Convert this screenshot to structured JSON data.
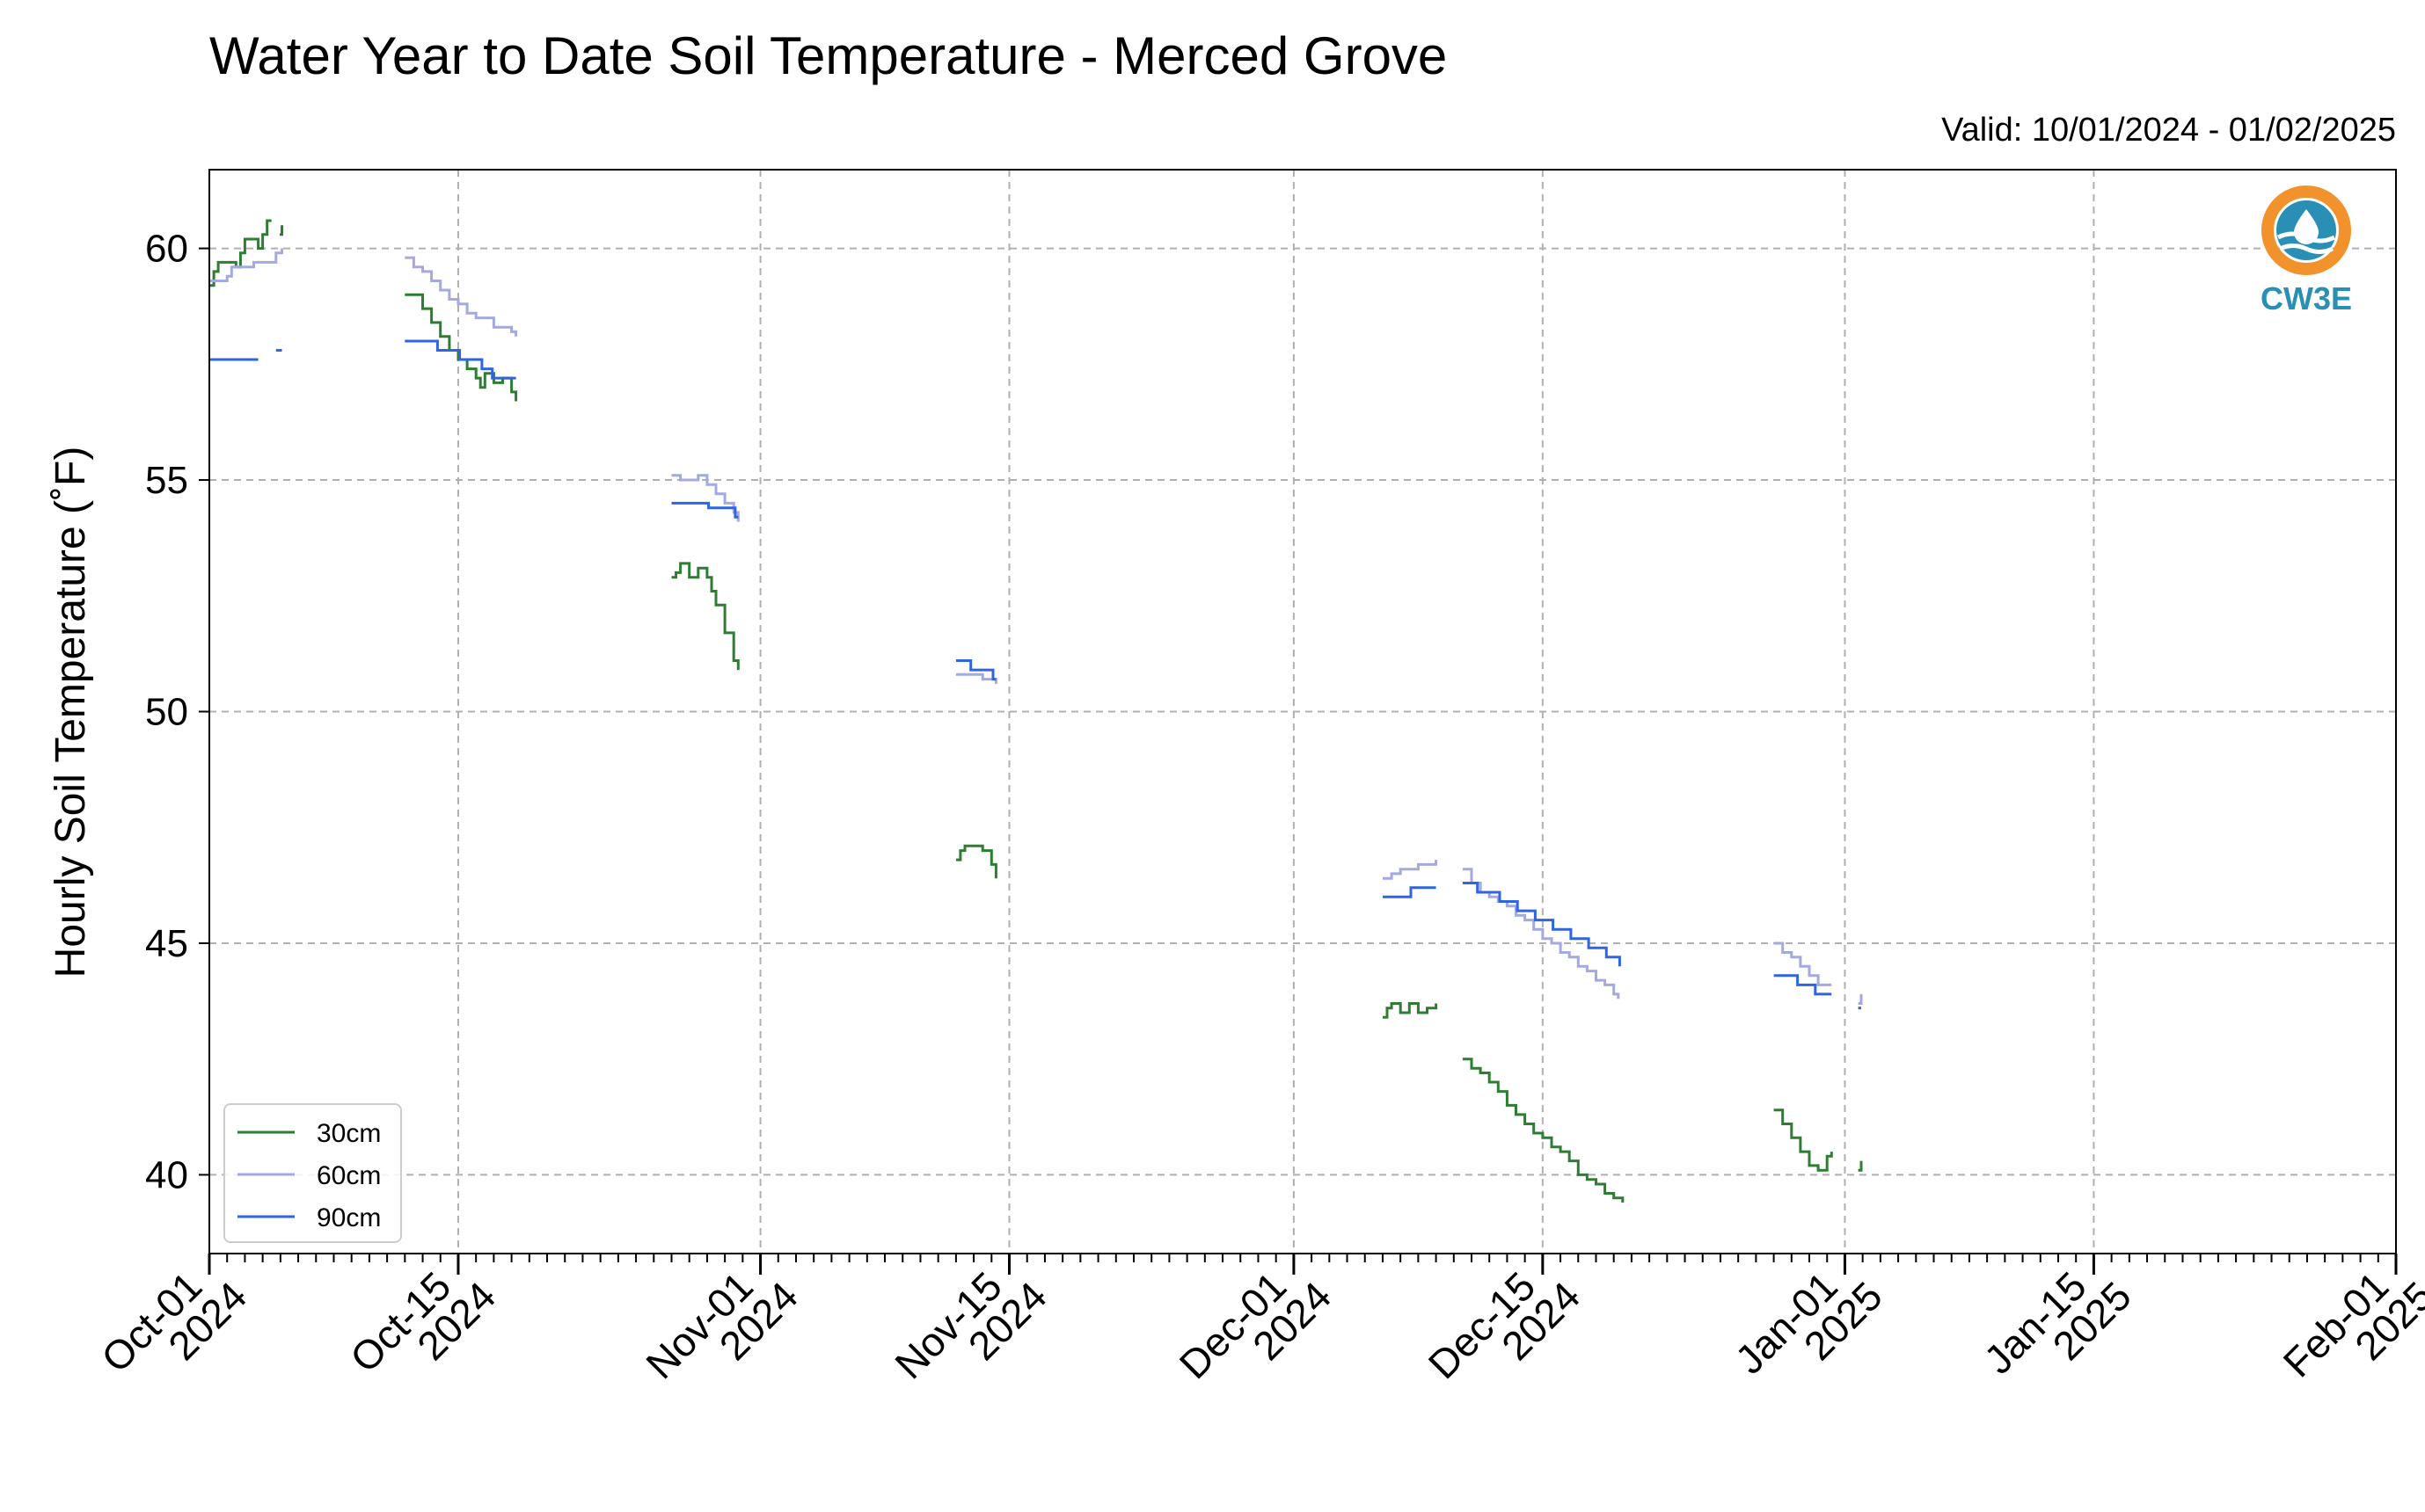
{
  "chart_data": {
    "type": "line",
    "title": "Water Year to Date Soil Temperature - Merced Grove",
    "subtitle": "Valid: 10/01/2024 - 01/02/2025",
    "xlabel": "",
    "ylabel": "Hourly Soil Temperature ($^\\circ$F)",
    "ylabel_display": "Hourly Soil Temperature (˚F)",
    "xlim": [
      "2024-10-01",
      "2025-02-01"
    ],
    "ylim": [
      38.3,
      61.7
    ],
    "grid": true,
    "legend_position": "lower-left",
    "x_ticks": [
      {
        "date": "2024-10-01",
        "line1": "Oct-01",
        "line2": "2024"
      },
      {
        "date": "2024-10-15",
        "line1": "Oct-15",
        "line2": "2024"
      },
      {
        "date": "2024-11-01",
        "line1": "Nov-01",
        "line2": "2024"
      },
      {
        "date": "2024-11-15",
        "line1": "Nov-15",
        "line2": "2024"
      },
      {
        "date": "2024-12-01",
        "line1": "Dec-01",
        "line2": "2024"
      },
      {
        "date": "2024-12-15",
        "line1": "Dec-15",
        "line2": "2024"
      },
      {
        "date": "2025-01-01",
        "line1": "Jan-01",
        "line2": "2025"
      },
      {
        "date": "2025-01-15",
        "line1": "Jan-15",
        "line2": "2025"
      },
      {
        "date": "2025-02-01",
        "line1": "Feb-01",
        "line2": "2025"
      }
    ],
    "y_ticks": [
      40,
      45,
      50,
      55,
      60
    ],
    "series": [
      {
        "name": "30cm",
        "color": "#2e7d32",
        "segments": [
          [
            [
              "2024-10-01 00:00",
              59.2
            ],
            [
              "2024-10-01 06:00",
              59.5
            ],
            [
              "2024-10-01 12:00",
              59.7
            ],
            [
              "2024-10-02 00:00",
              59.7
            ],
            [
              "2024-10-02 12:00",
              59.6
            ],
            [
              "2024-10-02 18:00",
              59.9
            ],
            [
              "2024-10-03 00:00",
              60.2
            ],
            [
              "2024-10-03 12:00",
              60.2
            ],
            [
              "2024-10-03 18:00",
              60.0
            ],
            [
              "2024-10-04 00:00",
              60.3
            ],
            [
              "2024-10-04 06:00",
              60.6
            ],
            [
              "2024-10-04 12:00",
              60.6
            ]
          ],
          [
            [
              "2024-10-04 23:00",
              60.3
            ],
            [
              "2024-10-05 02:00",
              60.5
            ]
          ],
          [
            [
              "2024-10-12 00:00",
              59.0
            ],
            [
              "2024-10-12 12:00",
              59.0
            ],
            [
              "2024-10-13 00:00",
              58.7
            ],
            [
              "2024-10-13 12:00",
              58.4
            ],
            [
              "2024-10-14 00:00",
              58.1
            ],
            [
              "2024-10-14 12:00",
              57.8
            ],
            [
              "2024-10-15 00:00",
              57.6
            ],
            [
              "2024-10-15 12:00",
              57.4
            ],
            [
              "2024-10-16 00:00",
              57.2
            ],
            [
              "2024-10-16 06:00",
              57.0
            ],
            [
              "2024-10-16 12:00",
              57.3
            ],
            [
              "2024-10-17 00:00",
              57.1
            ],
            [
              "2024-10-17 12:00",
              57.2
            ],
            [
              "2024-10-18 00:00",
              56.9
            ],
            [
              "2024-10-18 06:00",
              56.7
            ]
          ],
          [
            [
              "2024-10-27 00:00",
              52.9
            ],
            [
              "2024-10-27 06:00",
              53.0
            ],
            [
              "2024-10-27 12:00",
              53.2
            ],
            [
              "2024-10-28 00:00",
              52.9
            ],
            [
              "2024-10-28 12:00",
              53.1
            ],
            [
              "2024-10-29 00:00",
              52.9
            ],
            [
              "2024-10-29 06:00",
              52.6
            ],
            [
              "2024-10-29 12:00",
              52.3
            ],
            [
              "2024-10-30 00:00",
              51.7
            ],
            [
              "2024-10-30 12:00",
              51.1
            ],
            [
              "2024-10-30 18:00",
              50.9
            ]
          ],
          [
            [
              "2024-11-12 00:00",
              46.8
            ],
            [
              "2024-11-12 06:00",
              47.0
            ],
            [
              "2024-11-12 12:00",
              47.1
            ],
            [
              "2024-11-13 00:00",
              47.1
            ],
            [
              "2024-11-13 12:00",
              47.0
            ],
            [
              "2024-11-14 00:00",
              46.7
            ],
            [
              "2024-11-14 06:00",
              46.4
            ]
          ],
          [
            [
              "2024-12-06 00:00",
              43.4
            ],
            [
              "2024-12-06 06:00",
              43.6
            ],
            [
              "2024-12-06 12:00",
              43.7
            ],
            [
              "2024-12-07 00:00",
              43.5
            ],
            [
              "2024-12-07 12:00",
              43.7
            ],
            [
              "2024-12-08 00:00",
              43.5
            ],
            [
              "2024-12-08 12:00",
              43.6
            ],
            [
              "2024-12-09 00:00",
              43.7
            ]
          ],
          [
            [
              "2024-12-10 12:00",
              42.5
            ],
            [
              "2024-12-11 00:00",
              42.3
            ],
            [
              "2024-12-11 12:00",
              42.2
            ],
            [
              "2024-12-12 00:00",
              42.0
            ],
            [
              "2024-12-12 12:00",
              41.8
            ],
            [
              "2024-12-13 00:00",
              41.5
            ],
            [
              "2024-12-13 12:00",
              41.3
            ],
            [
              "2024-12-14 00:00",
              41.1
            ],
            [
              "2024-12-14 12:00",
              40.9
            ],
            [
              "2024-12-15 00:00",
              40.8
            ],
            [
              "2024-12-15 12:00",
              40.6
            ],
            [
              "2024-12-16 00:00",
              40.5
            ],
            [
              "2024-12-16 12:00",
              40.3
            ],
            [
              "2024-12-17 00:00",
              40.0
            ],
            [
              "2024-12-17 12:00",
              39.9
            ],
            [
              "2024-12-18 00:00",
              39.8
            ],
            [
              "2024-12-18 12:00",
              39.6
            ],
            [
              "2024-12-19 00:00",
              39.5
            ],
            [
              "2024-12-19 12:00",
              39.4
            ]
          ],
          [
            [
              "2024-12-28 00:00",
              41.4
            ],
            [
              "2024-12-28 12:00",
              41.1
            ],
            [
              "2024-12-29 00:00",
              40.8
            ],
            [
              "2024-12-29 12:00",
              40.5
            ],
            [
              "2024-12-30 00:00",
              40.2
            ],
            [
              "2024-12-30 12:00",
              40.1
            ],
            [
              "2024-12-31 00:00",
              40.4
            ],
            [
              "2024-12-31 06:00",
              40.5
            ]
          ],
          [
            [
              "2025-01-01 18:00",
              40.1
            ],
            [
              "2025-01-01 22:00",
              40.3
            ]
          ]
        ]
      },
      {
        "name": "60cm",
        "color": "#a4a9df",
        "segments": [
          [
            [
              "2024-10-01 00:00",
              59.3
            ],
            [
              "2024-10-02 00:00",
              59.4
            ],
            [
              "2024-10-02 06:00",
              59.6
            ],
            [
              "2024-10-03 00:00",
              59.6
            ],
            [
              "2024-10-03 12:00",
              59.7
            ],
            [
              "2024-10-04 12:00",
              59.7
            ],
            [
              "2024-10-04 18:00",
              59.9
            ],
            [
              "2024-10-05 02:00",
              60.0
            ]
          ],
          [
            [
              "2024-10-12 00:00",
              59.8
            ],
            [
              "2024-10-12 12:00",
              59.6
            ],
            [
              "2024-10-13 00:00",
              59.5
            ],
            [
              "2024-10-13 12:00",
              59.3
            ],
            [
              "2024-10-14 00:00",
              59.1
            ],
            [
              "2024-10-14 12:00",
              58.9
            ],
            [
              "2024-10-15 00:00",
              58.8
            ],
            [
              "2024-10-15 12:00",
              58.6
            ],
            [
              "2024-10-16 00:00",
              58.5
            ],
            [
              "2024-10-17 00:00",
              58.3
            ],
            [
              "2024-10-17 12:00",
              58.3
            ],
            [
              "2024-10-18 00:00",
              58.2
            ],
            [
              "2024-10-18 06:00",
              58.1
            ]
          ],
          [
            [
              "2024-10-27 00:00",
              55.1
            ],
            [
              "2024-10-27 12:00",
              55.0
            ],
            [
              "2024-10-28 00:00",
              55.0
            ],
            [
              "2024-10-28 12:00",
              55.1
            ],
            [
              "2024-10-29 00:00",
              54.9
            ],
            [
              "2024-10-29 12:00",
              54.7
            ],
            [
              "2024-10-30 00:00",
              54.5
            ],
            [
              "2024-10-30 12:00",
              54.3
            ],
            [
              "2024-10-30 18:00",
              54.1
            ]
          ],
          [
            [
              "2024-11-12 00:00",
              50.8
            ],
            [
              "2024-11-13 00:00",
              50.8
            ],
            [
              "2024-11-13 12:00",
              50.7
            ],
            [
              "2024-11-14 06:00",
              50.6
            ]
          ],
          [
            [
              "2024-12-06 00:00",
              46.4
            ],
            [
              "2024-12-06 12:00",
              46.5
            ],
            [
              "2024-12-07 00:00",
              46.6
            ],
            [
              "2024-12-07 12:00",
              46.6
            ],
            [
              "2024-12-08 00:00",
              46.7
            ],
            [
              "2024-12-09 00:00",
              46.8
            ]
          ],
          [
            [
              "2024-12-10 12:00",
              46.6
            ],
            [
              "2024-12-11 00:00",
              46.3
            ],
            [
              "2024-12-11 12:00",
              46.1
            ],
            [
              "2024-12-12 00:00",
              46.0
            ],
            [
              "2024-12-12 12:00",
              45.9
            ],
            [
              "2024-12-13 00:00",
              45.8
            ],
            [
              "2024-12-13 12:00",
              45.6
            ],
            [
              "2024-12-14 00:00",
              45.5
            ],
            [
              "2024-12-14 12:00",
              45.3
            ],
            [
              "2024-12-15 00:00",
              45.1
            ],
            [
              "2024-12-15 12:00",
              45.0
            ],
            [
              "2024-12-16 00:00",
              44.8
            ],
            [
              "2024-12-16 12:00",
              44.7
            ],
            [
              "2024-12-17 00:00",
              44.5
            ],
            [
              "2024-12-17 12:00",
              44.4
            ],
            [
              "2024-12-18 00:00",
              44.2
            ],
            [
              "2024-12-18 12:00",
              44.1
            ],
            [
              "2024-12-19 00:00",
              43.9
            ],
            [
              "2024-12-19 06:00",
              43.8
            ]
          ],
          [
            [
              "2024-12-28 00:00",
              45.0
            ],
            [
              "2024-12-28 12:00",
              44.8
            ],
            [
              "2024-12-29 00:00",
              44.7
            ],
            [
              "2024-12-29 12:00",
              44.5
            ],
            [
              "2024-12-30 00:00",
              44.3
            ],
            [
              "2024-12-30 12:00",
              44.1
            ],
            [
              "2024-12-31 06:00",
              44.1
            ]
          ],
          [
            [
              "2025-01-01 18:00",
              43.7
            ],
            [
              "2025-01-01 22:00",
              43.9
            ]
          ]
        ]
      },
      {
        "name": "90cm",
        "color": "#3064e0",
        "segments": [
          [
            [
              "2024-10-01 00:00",
              57.6
            ],
            [
              "2024-10-03 18:00",
              57.6
            ]
          ],
          [
            [
              "2024-10-04 18:00",
              57.8
            ],
            [
              "2024-10-05 02:00",
              57.8
            ]
          ],
          [
            [
              "2024-10-12 00:00",
              58.0
            ],
            [
              "2024-10-13 18:00",
              58.0
            ],
            [
              "2024-10-13 20:00",
              57.8
            ],
            [
              "2024-10-15 00:00",
              57.8
            ],
            [
              "2024-10-15 02:00",
              57.6
            ],
            [
              "2024-10-16 06:00",
              57.6
            ],
            [
              "2024-10-16 08:00",
              57.4
            ],
            [
              "2024-10-16 20:00",
              57.4
            ],
            [
              "2024-10-16 22:00",
              57.2
            ],
            [
              "2024-10-18 06:00",
              57.2
            ]
          ],
          [
            [
              "2024-10-27 00:00",
              54.5
            ],
            [
              "2024-10-29 00:00",
              54.5
            ],
            [
              "2024-10-29 02:00",
              54.4
            ],
            [
              "2024-10-30 12:00",
              54.4
            ],
            [
              "2024-10-30 14:00",
              54.2
            ],
            [
              "2024-10-30 18:00",
              54.2
            ]
          ],
          [
            [
              "2024-11-12 00:00",
              51.1
            ],
            [
              "2024-11-12 18:00",
              51.1
            ],
            [
              "2024-11-12 20:00",
              50.9
            ],
            [
              "2024-11-14 00:00",
              50.9
            ],
            [
              "2024-11-14 02:00",
              50.7
            ],
            [
              "2024-11-14 06:00",
              50.7
            ]
          ],
          [
            [
              "2024-12-06 00:00",
              46.0
            ],
            [
              "2024-12-07 12:00",
              46.0
            ],
            [
              "2024-12-07 14:00",
              46.2
            ],
            [
              "2024-12-09 00:00",
              46.2
            ]
          ],
          [
            [
              "2024-12-10 12:00",
              46.3
            ],
            [
              "2024-12-11 06:00",
              46.3
            ],
            [
              "2024-12-11 08:00",
              46.1
            ],
            [
              "2024-12-12 12:00",
              46.1
            ],
            [
              "2024-12-12 14:00",
              45.9
            ],
            [
              "2024-12-13 12:00",
              45.9
            ],
            [
              "2024-12-13 14:00",
              45.7
            ],
            [
              "2024-12-14 12:00",
              45.7
            ],
            [
              "2024-12-14 14:00",
              45.5
            ],
            [
              "2024-12-15 12:00",
              45.5
            ],
            [
              "2024-12-15 14:00",
              45.3
            ],
            [
              "2024-12-16 12:00",
              45.3
            ],
            [
              "2024-12-16 14:00",
              45.1
            ],
            [
              "2024-12-17 12:00",
              45.1
            ],
            [
              "2024-12-17 14:00",
              44.9
            ],
            [
              "2024-12-18 12:00",
              44.9
            ],
            [
              "2024-12-18 14:00",
              44.7
            ],
            [
              "2024-12-19 06:00",
              44.7
            ],
            [
              "2024-12-19 08:00",
              44.5
            ]
          ],
          [
            [
              "2024-12-28 00:00",
              44.3
            ],
            [
              "2024-12-29 06:00",
              44.3
            ],
            [
              "2024-12-29 08:00",
              44.1
            ],
            [
              "2024-12-30 06:00",
              44.1
            ],
            [
              "2024-12-30 08:00",
              43.9
            ],
            [
              "2024-12-31 06:00",
              43.9
            ]
          ],
          [
            [
              "2025-01-01 18:00",
              43.6
            ],
            [
              "2025-01-01 22:00",
              43.6
            ]
          ]
        ]
      }
    ]
  },
  "logo": {
    "text": "CW3E",
    "ring_color": "#f2922c",
    "water_color": "#2a8fb5",
    "text_color": "#2a8fb5"
  }
}
